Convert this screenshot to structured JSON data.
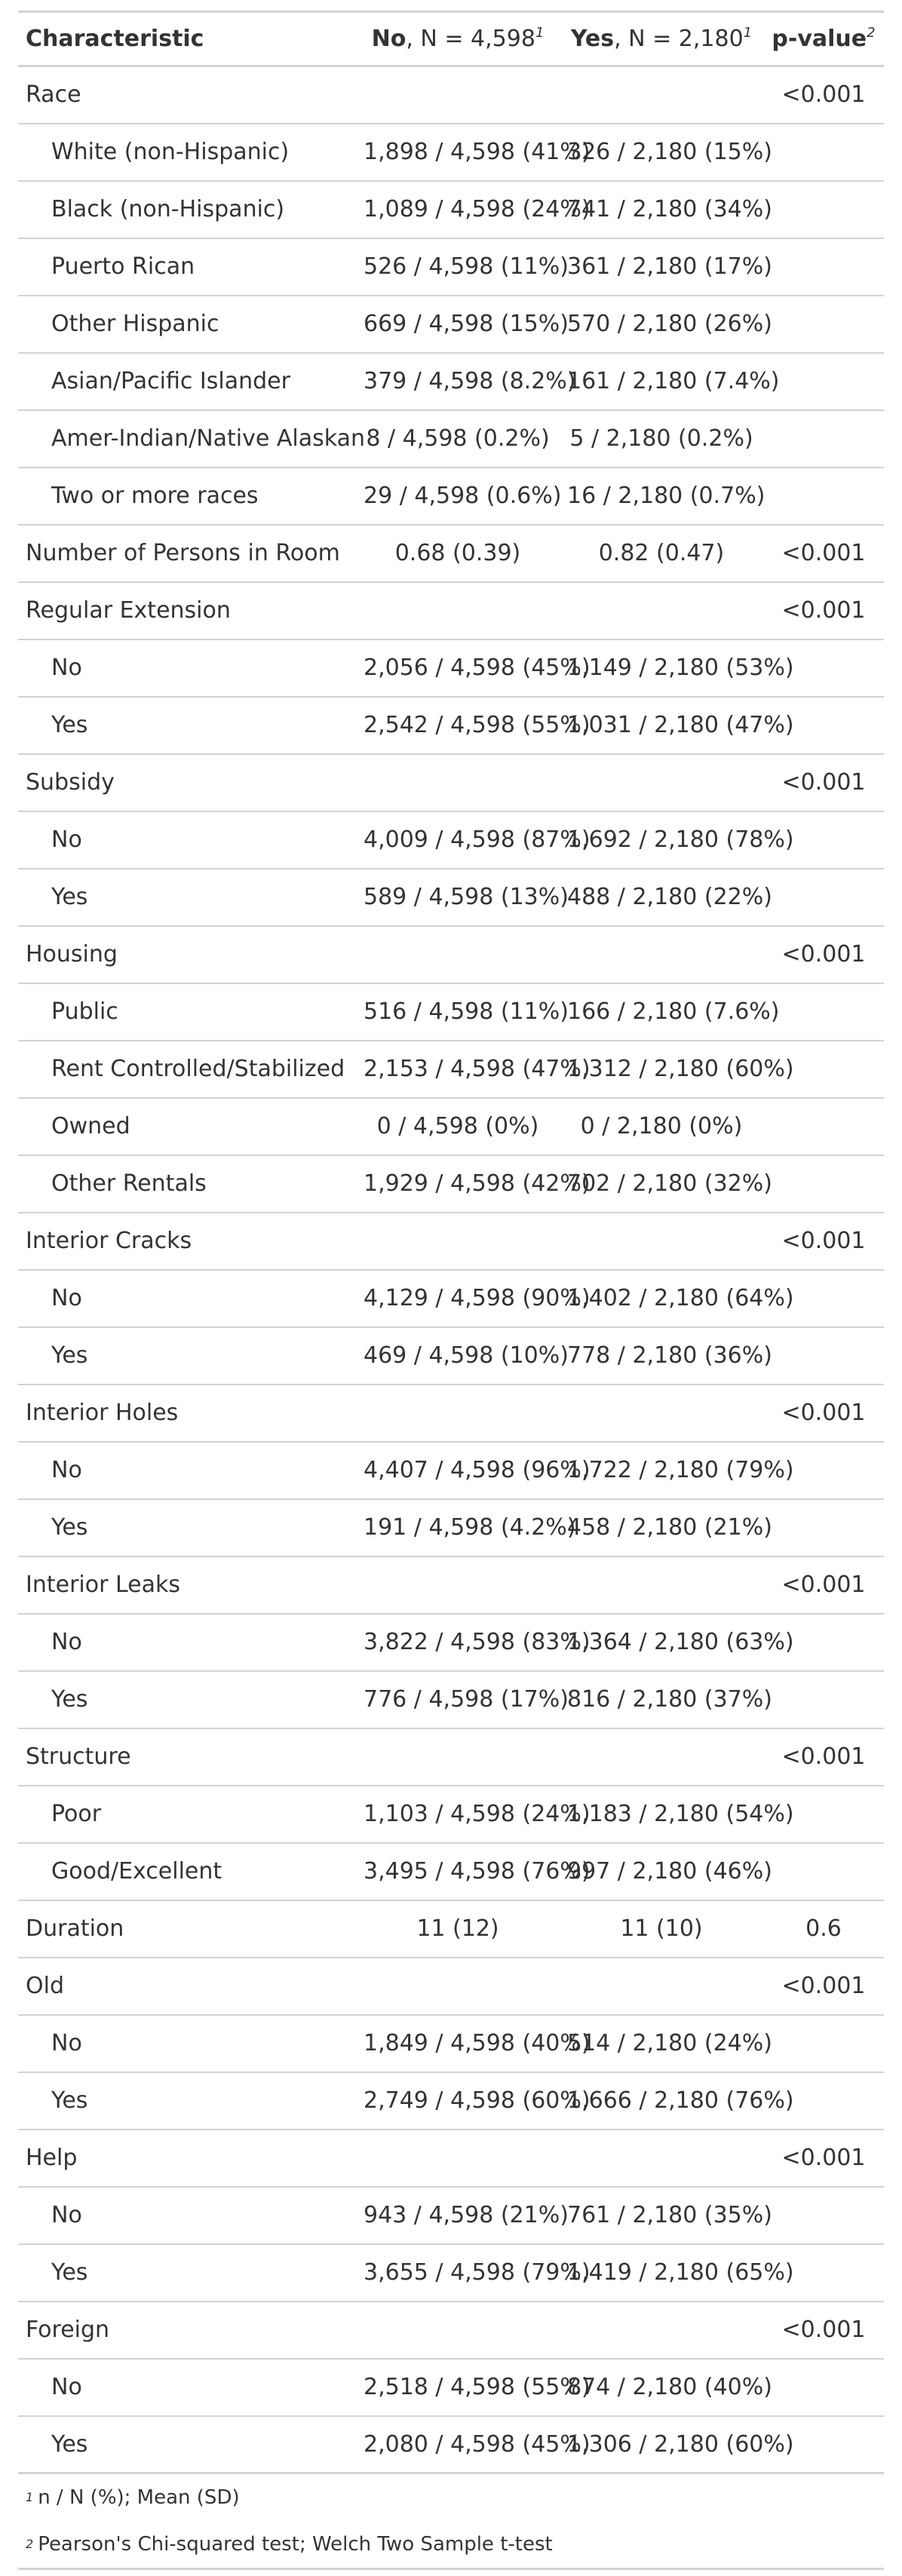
{
  "header": {
    "characteristic": "Characteristic",
    "no_bold": "No",
    "no_rest": ", N = 4,598",
    "no_sup": "1",
    "yes_bold": "Yes",
    "yes_rest": ", N = 2,180",
    "yes_sup": "1",
    "pvalue": "p-value",
    "pvalue_sup": "2"
  },
  "rows": [
    {
      "label": "Race",
      "indent": false,
      "no": "",
      "yes": "",
      "p": "<0.001"
    },
    {
      "label": "White (non-Hispanic)",
      "indent": true,
      "no": "1,898 / 4,598 (41%)",
      "yes": "326 / 2,180 (15%)",
      "p": ""
    },
    {
      "label": "Black (non-Hispanic)",
      "indent": true,
      "no": "1,089 / 4,598 (24%)",
      "yes": "741 / 2,180 (34%)",
      "p": ""
    },
    {
      "label": "Puerto Rican",
      "indent": true,
      "no": "526 / 4,598 (11%)",
      "yes": "361 / 2,180 (17%)",
      "p": ""
    },
    {
      "label": "Other Hispanic",
      "indent": true,
      "no": "669 / 4,598 (15%)",
      "yes": "570 / 2,180 (26%)",
      "p": ""
    },
    {
      "label": "Asian/Pacific Islander",
      "indent": true,
      "no": "379 / 4,598 (8.2%)",
      "yes": "161 / 2,180 (7.4%)",
      "p": ""
    },
    {
      "label": "Amer-Indian/Native Alaskan",
      "indent": true,
      "no": "8 / 4,598 (0.2%)",
      "yes": "5 / 2,180 (0.2%)",
      "p": ""
    },
    {
      "label": "Two or more races",
      "indent": true,
      "no": "29 / 4,598 (0.6%)",
      "yes": "16 / 2,180 (0.7%)",
      "p": ""
    },
    {
      "label": "Number of Persons in Room",
      "indent": false,
      "no": "0.68 (0.39)",
      "yes": "0.82 (0.47)",
      "p": "<0.001"
    },
    {
      "label": "Regular Extension",
      "indent": false,
      "no": "",
      "yes": "",
      "p": "<0.001"
    },
    {
      "label": "No",
      "indent": true,
      "no": "2,056 / 4,598 (45%)",
      "yes": "1,149 / 2,180 (53%)",
      "p": ""
    },
    {
      "label": "Yes",
      "indent": true,
      "no": "2,542 / 4,598 (55%)",
      "yes": "1,031 / 2,180 (47%)",
      "p": ""
    },
    {
      "label": "Subsidy",
      "indent": false,
      "no": "",
      "yes": "",
      "p": "<0.001"
    },
    {
      "label": "No",
      "indent": true,
      "no": "4,009 / 4,598 (87%)",
      "yes": "1,692 / 2,180 (78%)",
      "p": ""
    },
    {
      "label": "Yes",
      "indent": true,
      "no": "589 / 4,598 (13%)",
      "yes": "488 / 2,180 (22%)",
      "p": ""
    },
    {
      "label": "Housing",
      "indent": false,
      "no": "",
      "yes": "",
      "p": "<0.001"
    },
    {
      "label": "Public",
      "indent": true,
      "no": "516 / 4,598 (11%)",
      "yes": "166 / 2,180 (7.6%)",
      "p": ""
    },
    {
      "label": "Rent Controlled/Stabilized",
      "indent": true,
      "no": "2,153 / 4,598 (47%)",
      "yes": "1,312 / 2,180 (60%)",
      "p": ""
    },
    {
      "label": "Owned",
      "indent": true,
      "no": "0 / 4,598 (0%)",
      "yes": "0 / 2,180 (0%)",
      "p": ""
    },
    {
      "label": "Other Rentals",
      "indent": true,
      "no": "1,929 / 4,598 (42%)",
      "yes": "702 / 2,180 (32%)",
      "p": ""
    },
    {
      "label": "Interior Cracks",
      "indent": false,
      "no": "",
      "yes": "",
      "p": "<0.001"
    },
    {
      "label": "No",
      "indent": true,
      "no": "4,129 / 4,598 (90%)",
      "yes": "1,402 / 2,180 (64%)",
      "p": ""
    },
    {
      "label": "Yes",
      "indent": true,
      "no": "469 / 4,598 (10%)",
      "yes": "778 / 2,180 (36%)",
      "p": ""
    },
    {
      "label": "Interior Holes",
      "indent": false,
      "no": "",
      "yes": "",
      "p": "<0.001"
    },
    {
      "label": "No",
      "indent": true,
      "no": "4,407 / 4,598 (96%)",
      "yes": "1,722 / 2,180 (79%)",
      "p": ""
    },
    {
      "label": "Yes",
      "indent": true,
      "no": "191 / 4,598 (4.2%)",
      "yes": "458 / 2,180 (21%)",
      "p": ""
    },
    {
      "label": "Interior Leaks",
      "indent": false,
      "no": "",
      "yes": "",
      "p": "<0.001"
    },
    {
      "label": "No",
      "indent": true,
      "no": "3,822 / 4,598 (83%)",
      "yes": "1,364 / 2,180 (63%)",
      "p": ""
    },
    {
      "label": "Yes",
      "indent": true,
      "no": "776 / 4,598 (17%)",
      "yes": "816 / 2,180 (37%)",
      "p": ""
    },
    {
      "label": "Structure",
      "indent": false,
      "no": "",
      "yes": "",
      "p": "<0.001"
    },
    {
      "label": "Poor",
      "indent": true,
      "no": "1,103 / 4,598 (24%)",
      "yes": "1,183 / 2,180 (54%)",
      "p": ""
    },
    {
      "label": "Good/Excellent",
      "indent": true,
      "no": "3,495 / 4,598 (76%)",
      "yes": "997 / 2,180 (46%)",
      "p": ""
    },
    {
      "label": "Duration",
      "indent": false,
      "no": "11 (12)",
      "yes": "11 (10)",
      "p": "0.6"
    },
    {
      "label": "Old",
      "indent": false,
      "no": "",
      "yes": "",
      "p": "<0.001"
    },
    {
      "label": "No",
      "indent": true,
      "no": "1,849 / 4,598 (40%)",
      "yes": "514 / 2,180 (24%)",
      "p": ""
    },
    {
      "label": "Yes",
      "indent": true,
      "no": "2,749 / 4,598 (60%)",
      "yes": "1,666 / 2,180 (76%)",
      "p": ""
    },
    {
      "label": "Help",
      "indent": false,
      "no": "",
      "yes": "",
      "p": "<0.001"
    },
    {
      "label": "No",
      "indent": true,
      "no": "943 / 4,598 (21%)",
      "yes": "761 / 2,180 (35%)",
      "p": ""
    },
    {
      "label": "Yes",
      "indent": true,
      "no": "3,655 / 4,598 (79%)",
      "yes": "1,419 / 2,180 (65%)",
      "p": ""
    },
    {
      "label": "Foreign",
      "indent": false,
      "no": "",
      "yes": "",
      "p": "<0.001"
    },
    {
      "label": "No",
      "indent": true,
      "no": "2,518 / 4,598 (55%)",
      "yes": "874 / 2,180 (40%)",
      "p": ""
    },
    {
      "label": "Yes",
      "indent": true,
      "no": "2,080 / 4,598 (45%)",
      "yes": "1,306 / 2,180 (60%)",
      "p": ""
    }
  ],
  "footnotes": [
    {
      "marker": "1",
      "text": "n / N (%); Mean (SD)"
    },
    {
      "marker": "2",
      "text": "Pearson's Chi-squared test; Welch Two Sample t-test"
    }
  ]
}
